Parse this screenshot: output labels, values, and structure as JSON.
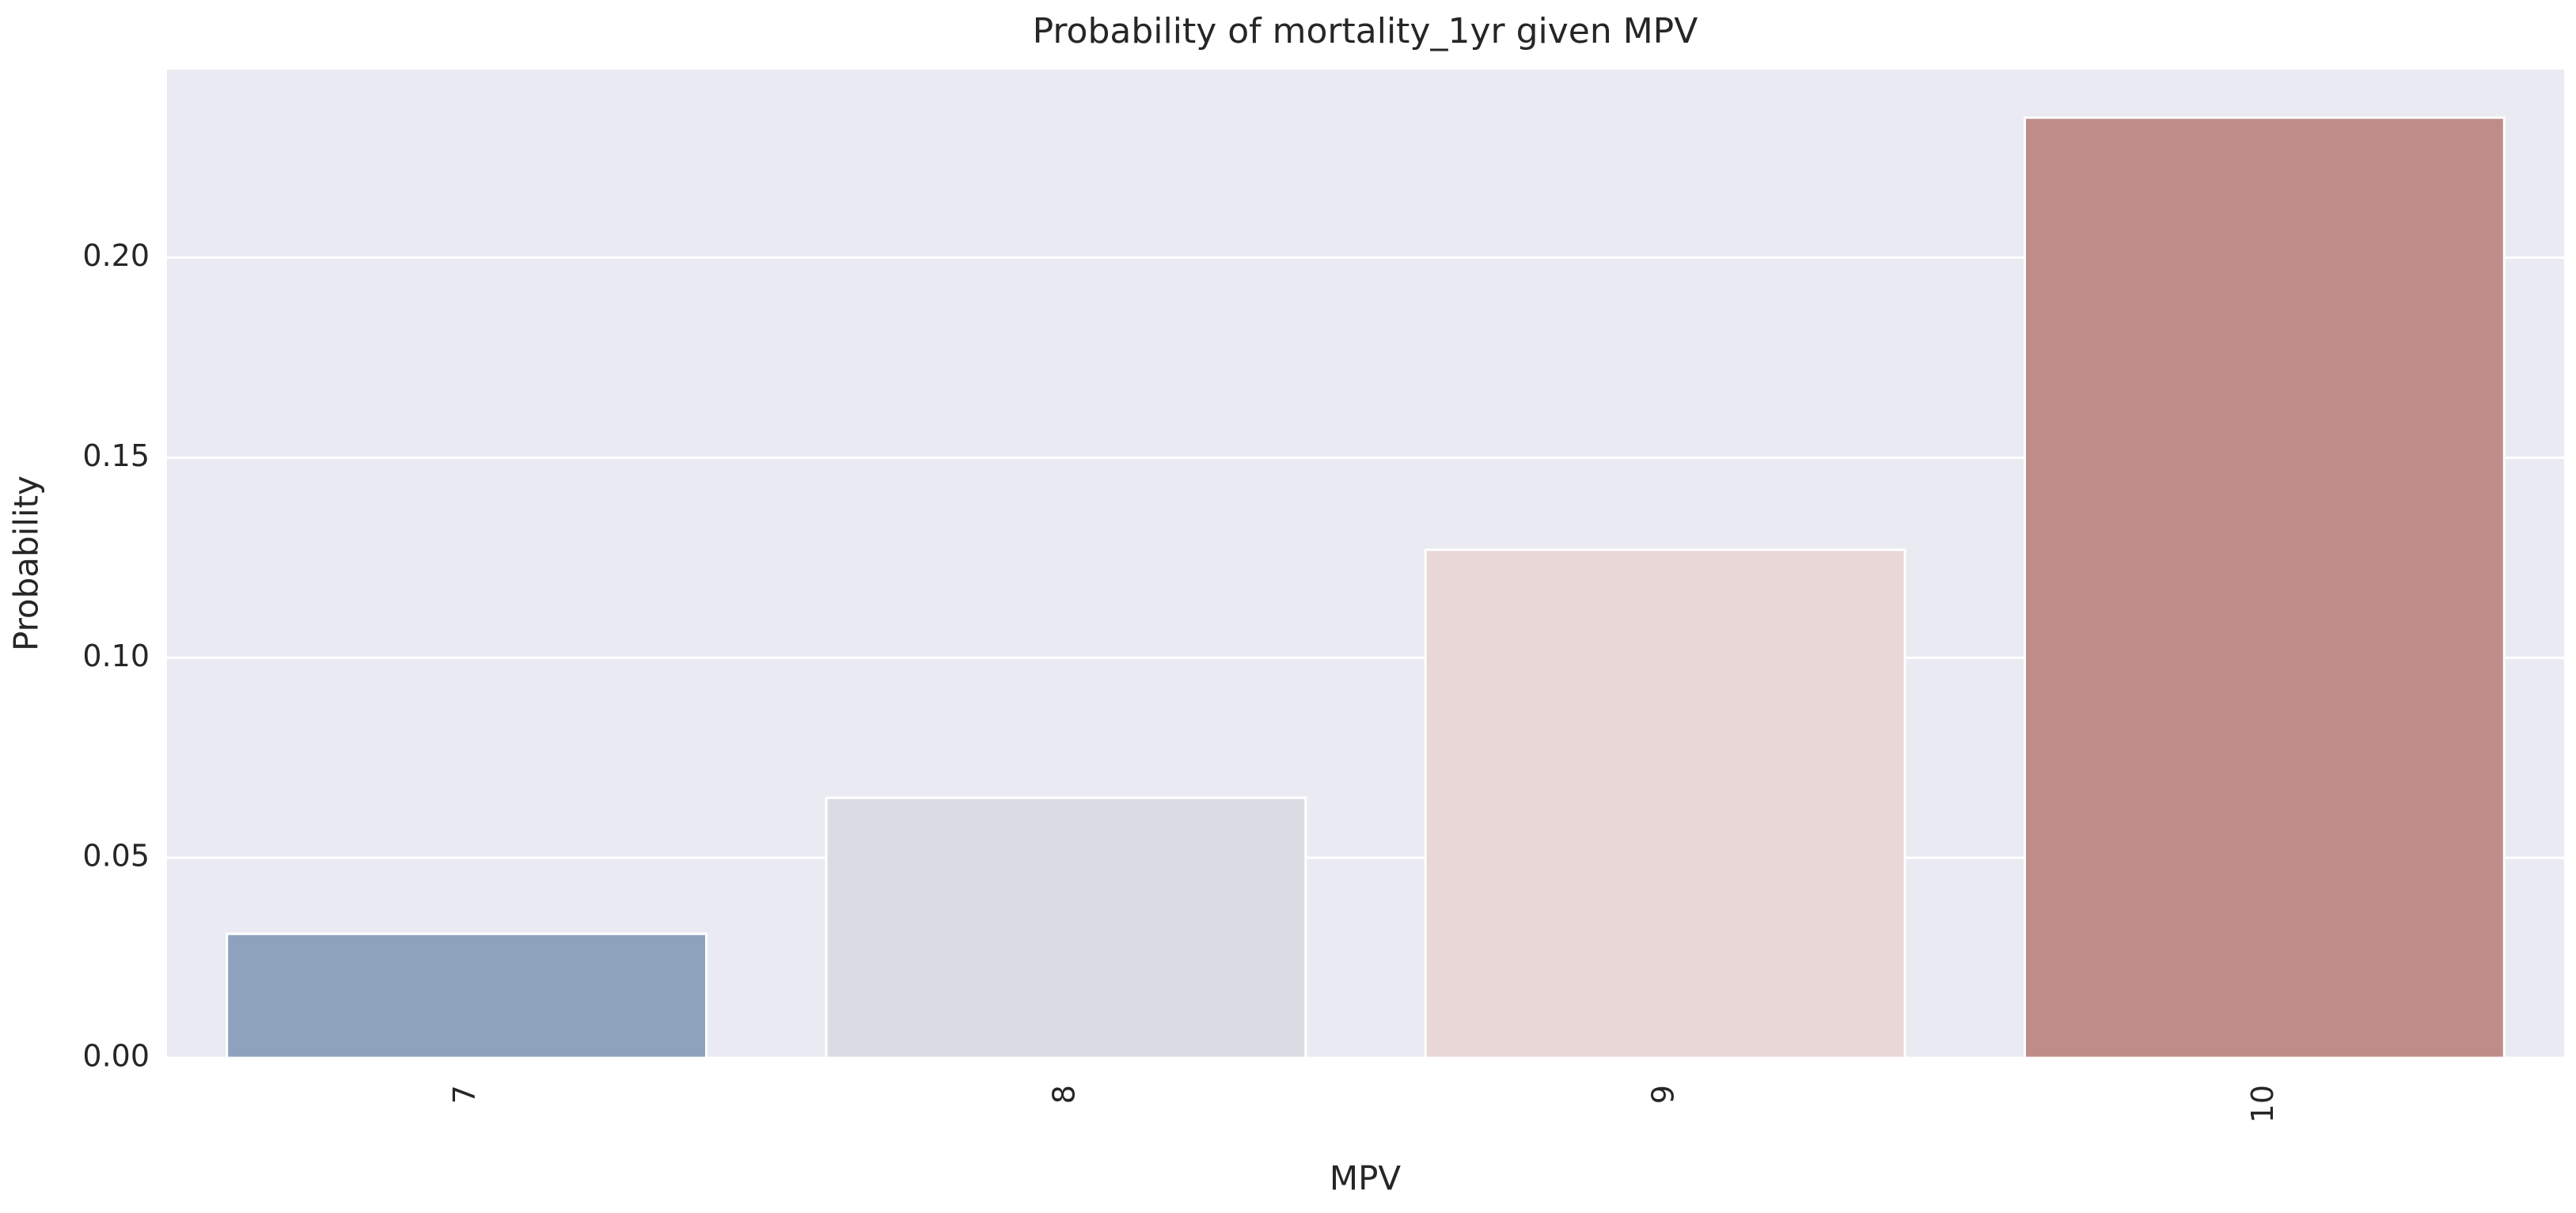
{
  "chart_data": {
    "type": "bar",
    "title": "Probability of mortality_1yr given MPV",
    "x_label": "MPV",
    "y_label": "Probability",
    "categories": [
      "7",
      "8",
      "9",
      "10"
    ],
    "values": [
      0.031,
      0.065,
      0.127,
      0.235
    ],
    "colors": [
      "#8ea2bd",
      "#d9dce3",
      "#e9d6d6",
      "#c08c89"
    ],
    "ylim": [
      0,
      0.247
    ],
    "yticks": [
      {
        "value": 0,
        "label": "0.00"
      },
      {
        "value": 0.05,
        "label": "0.05"
      },
      {
        "value": 0.1,
        "label": "0.10"
      },
      {
        "value": 0.15,
        "label": "0.15"
      },
      {
        "value": 0.2,
        "label": "0.20"
      }
    ],
    "grid": true
  }
}
